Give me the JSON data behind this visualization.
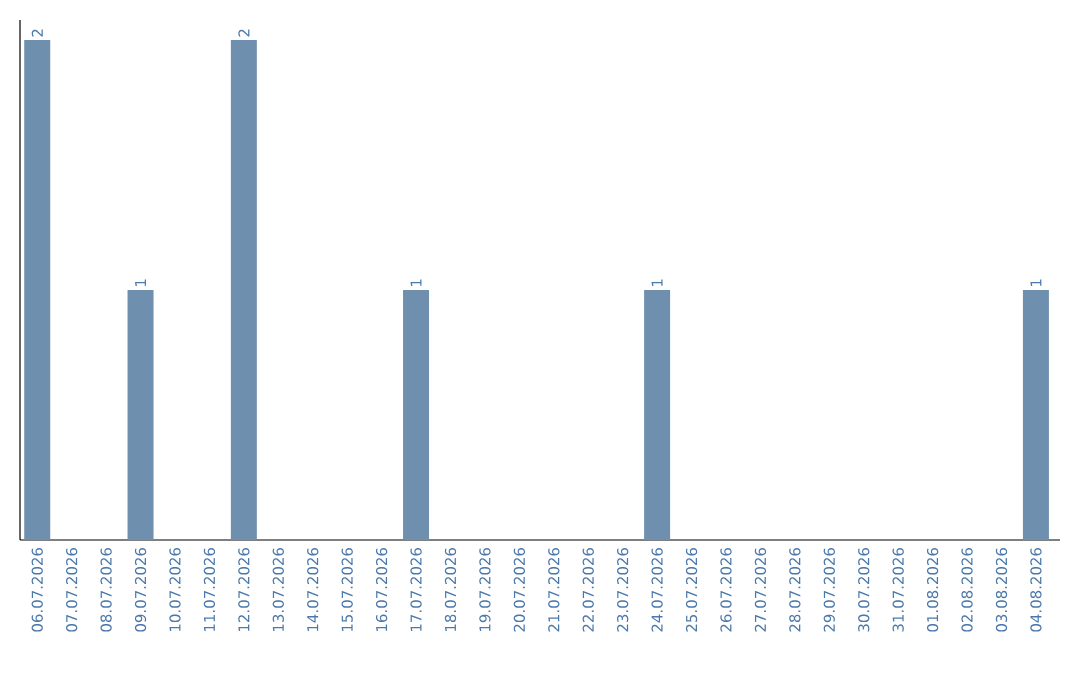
{
  "chart_data": {
    "type": "bar",
    "categories": [
      "06.07.2026",
      "07.07.2026",
      "08.07.2026",
      "09.07.2026",
      "10.07.2026",
      "11.07.2026",
      "12.07.2026",
      "13.07.2026",
      "14.07.2026",
      "15.07.2026",
      "16.07.2026",
      "17.07.2026",
      "18.07.2026",
      "19.07.2026",
      "20.07.2026",
      "21.07.2026",
      "22.07.2026",
      "23.07.2026",
      "24.07.2026",
      "25.07.2026",
      "26.07.2026",
      "27.07.2026",
      "28.07.2026",
      "29.07.2026",
      "30.07.2026",
      "31.07.2026",
      "01.08.2026",
      "02.08.2026",
      "03.08.2026",
      "04.08.2026"
    ],
    "values": [
      2,
      0,
      0,
      1,
      0,
      0,
      2,
      0,
      0,
      0,
      0,
      1,
      0,
      0,
      0,
      0,
      0,
      0,
      1,
      0,
      0,
      0,
      0,
      0,
      0,
      0,
      0,
      0,
      0,
      1
    ],
    "value_labels": [
      "2",
      null,
      null,
      "1",
      null,
      null,
      "2",
      null,
      null,
      null,
      null,
      "1",
      null,
      null,
      null,
      null,
      null,
      null,
      "1",
      null,
      null,
      null,
      null,
      null,
      null,
      null,
      null,
      null,
      null,
      "1"
    ],
    "color": "#6f8fae"
  }
}
